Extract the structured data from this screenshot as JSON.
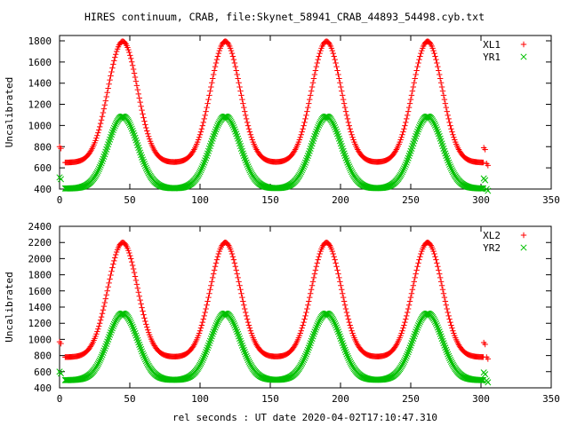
{
  "chart_data": [
    {
      "type": "scatter",
      "title": "HIRES continuum, CRAB, file:Skynet_58941_CRAB_44893_54498.cyb.txt",
      "xlabel": "",
      "ylabel": "Uncalibrated",
      "xlim": [
        0,
        350
      ],
      "ylim": [
        400,
        1850
      ],
      "xticks": [
        0,
        50,
        100,
        150,
        200,
        250,
        300,
        350
      ],
      "yticks": [
        400,
        600,
        800,
        1000,
        1200,
        1400,
        1600,
        1800
      ],
      "grid": false,
      "legend": "top-right",
      "peak_centers": [
        45,
        118,
        190,
        262
      ],
      "scan_range": [
        4,
        302
      ],
      "series": [
        {
          "name": "XL1",
          "marker": "plus",
          "color": "#ff0000",
          "baseline": 650,
          "peak": 1795,
          "endpoints": [
            [
              0,
              800
            ],
            [
              302,
              790
            ],
            [
              304,
              640
            ]
          ]
        },
        {
          "name": "YR1",
          "marker": "cross",
          "color": "#00c000",
          "baseline": 405,
          "peak": 1085,
          "endpoints": [
            [
              0,
              510
            ],
            [
              302,
              500
            ],
            [
              304,
              400
            ]
          ]
        }
      ]
    },
    {
      "type": "scatter",
      "title": "",
      "xlabel": "rel seconds : UT date 2020-04-02T17:10:47.310",
      "ylabel": "Uncalibrated",
      "xlim": [
        0,
        350
      ],
      "ylim": [
        400,
        2400
      ],
      "xticks": [
        0,
        50,
        100,
        150,
        200,
        250,
        300,
        350
      ],
      "yticks": [
        400,
        600,
        800,
        1000,
        1200,
        1400,
        1600,
        1800,
        2000,
        2200,
        2400
      ],
      "grid": false,
      "legend": "top-right",
      "peak_centers": [
        45,
        118,
        190,
        262
      ],
      "scan_range": [
        4,
        302
      ],
      "series": [
        {
          "name": "XL2",
          "marker": "plus",
          "color": "#ff0000",
          "baseline": 780,
          "peak": 2200,
          "endpoints": [
            [
              0,
              970
            ],
            [
              302,
              960
            ],
            [
              304,
              780
            ]
          ]
        },
        {
          "name": "YR2",
          "marker": "cross",
          "color": "#00c000",
          "baseline": 495,
          "peak": 1320,
          "endpoints": [
            [
              0,
              600
            ],
            [
              302,
              590
            ],
            [
              304,
              490
            ]
          ]
        }
      ]
    }
  ]
}
